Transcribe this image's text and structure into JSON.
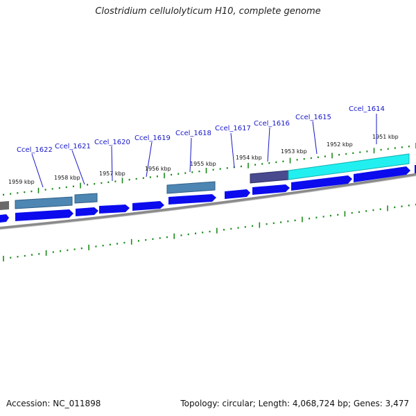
{
  "title": "Clostridium cellulolyticum H10, complete genome",
  "accession": "Accession: NC_011898",
  "summary": "Topology: circular; Length: 4,068,724 bp; Genes: 3,477",
  "kbp_labels": [
    "1951 kbp",
    "1952 kbp",
    "1953 kbp",
    "1954 kbp",
    "1955 kbp",
    "1956 kbp",
    "1957 kbp",
    "1958 kbp",
    "1959 kbp"
  ],
  "genes": [
    {
      "name": "Ccel_1614"
    },
    {
      "name": "Ccel_1615"
    },
    {
      "name": "Ccel_1616"
    },
    {
      "name": "Ccel_1617"
    },
    {
      "name": "Ccel_1618"
    },
    {
      "name": "Ccel_1619"
    },
    {
      "name": "Ccel_1620"
    },
    {
      "name": "Ccel_1621"
    },
    {
      "name": "Ccel_1622"
    }
  ],
  "colors": {
    "cds": "#0b0bee",
    "feature_teal": "#4d86b3",
    "feature_cyan": "#22f0f0",
    "feature_purple": "#4a4a8f",
    "feature_gray": "#6a6a6a",
    "backbone": "#8a8a8a",
    "tick": "#1a8a1a",
    "label": "#1515c8"
  }
}
